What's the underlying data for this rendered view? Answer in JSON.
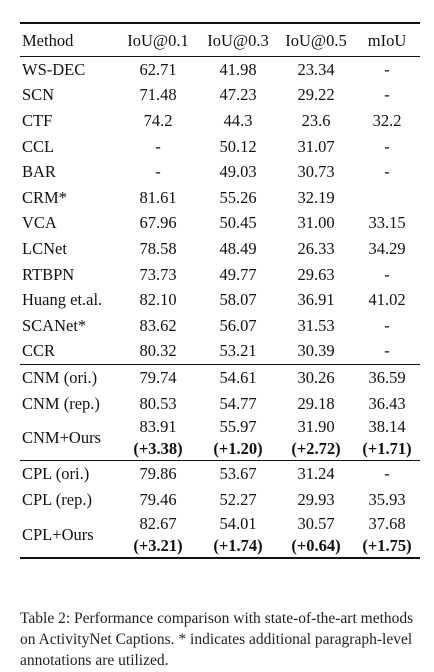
{
  "table": {
    "headers": [
      "Method",
      "IoU@0.1",
      "IoU@0.3",
      "IoU@0.5",
      "mIoU"
    ],
    "group1": [
      {
        "method": "WS-DEC",
        "iou1": "62.71",
        "iou3": "41.98",
        "iou5": "23.34",
        "miou": "-"
      },
      {
        "method": "SCN",
        "iou1": "71.48",
        "iou3": "47.23",
        "iou5": "29.22",
        "miou": "-"
      },
      {
        "method": "CTF",
        "iou1": "74.2",
        "iou3": "44.3",
        "iou5": "23.6",
        "miou": "32.2"
      },
      {
        "method": "CCL",
        "iou1": "-",
        "iou3": "50.12",
        "iou5": "31.07",
        "miou": "-"
      },
      {
        "method": "BAR",
        "iou1": "-",
        "iou3": "49.03",
        "iou5": "30.73",
        "miou": "-"
      },
      {
        "method": "CRM*",
        "iou1": "81.61",
        "iou3": "55.26",
        "iou5": "32.19",
        "miou": ""
      },
      {
        "method": "VCA",
        "iou1": "67.96",
        "iou3": "50.45",
        "iou5": "31.00",
        "miou": "33.15"
      },
      {
        "method": "LCNet",
        "iou1": "78.58",
        "iou3": "48.49",
        "iou5": "26.33",
        "miou": "34.29"
      },
      {
        "method": "RTBPN",
        "iou1": "73.73",
        "iou3": "49.77",
        "iou5": "29.63",
        "miou": "-"
      },
      {
        "method": "Huang et.al.",
        "iou1": "82.10",
        "iou3": "58.07",
        "iou5": "36.91",
        "miou": "41.02"
      },
      {
        "method": "SCANet*",
        "iou1": "83.62",
        "iou3": "56.07",
        "iou5": "31.53",
        "miou": "-"
      },
      {
        "method": "CCR",
        "iou1": "80.32",
        "iou3": "53.21",
        "iou5": "30.39",
        "miou": "-"
      }
    ],
    "group2": [
      {
        "method": "CNM (ori.)",
        "iou1": "79.74",
        "iou3": "54.61",
        "iou5": "30.26",
        "miou": "36.59"
      },
      {
        "method": "CNM (rep.)",
        "iou1": "80.53",
        "iou3": "54.77",
        "iou5": "29.18",
        "miou": "36.43"
      }
    ],
    "group2_ours": {
      "method": "CNM+Ours",
      "iou1": "83.91",
      "iou1_gain": "(+3.38)",
      "iou3": "55.97",
      "iou3_gain": "(+1.20)",
      "iou5": "31.90",
      "iou5_gain": "(+2.72)",
      "miou": "38.14",
      "miou_gain": "(+1.71)"
    },
    "group3": [
      {
        "method": "CPL (ori.)",
        "iou1": "79.86",
        "iou3": "53.67",
        "iou5": "31.24",
        "miou": "-"
      },
      {
        "method": "CPL (rep.)",
        "iou1": "79.46",
        "iou3": "52.27",
        "iou5": "29.93",
        "miou": "35.93"
      }
    ],
    "group3_ours": {
      "method": "CPL+Ours",
      "iou1": "82.67",
      "iou1_gain": "(+3.21)",
      "iou3": "54.01",
      "iou3_gain": "(+1.74)",
      "iou5": "30.57",
      "iou5_gain": "(+0.64)",
      "miou": "37.68",
      "miou_gain": "(+1.75)"
    }
  },
  "caption": "Table 2: Performance comparison with state-of-the-art methods on ActivityNet Captions. * indicates additional paragraph-level annotations are utilized."
}
